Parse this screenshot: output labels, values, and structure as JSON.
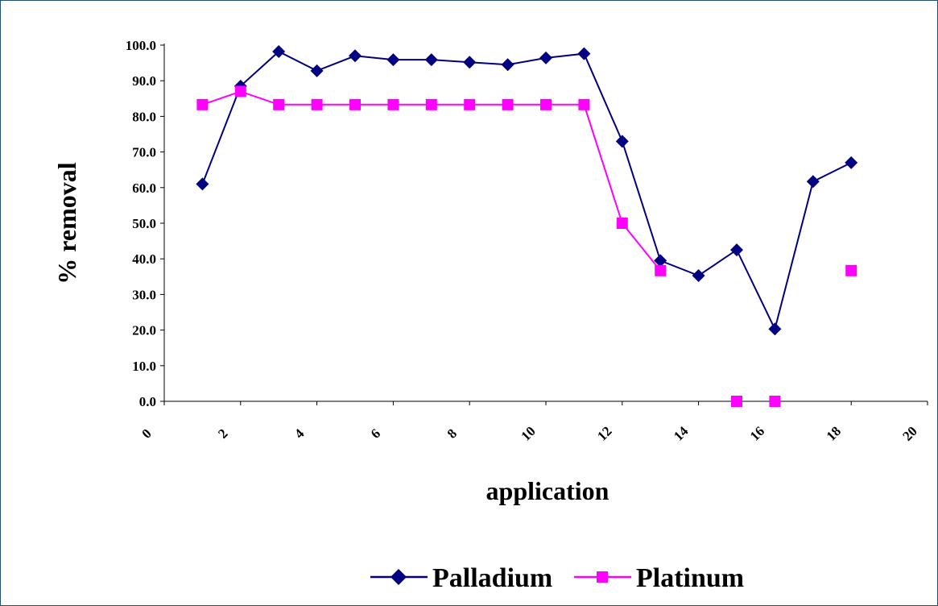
{
  "chart_data": {
    "type": "line",
    "xlabel": "application",
    "ylabel": "% removal",
    "xlim": [
      0,
      20
    ],
    "ylim": [
      0,
      100
    ],
    "x_ticks": [
      "0",
      "2",
      "4",
      "6",
      "8",
      "10",
      "12",
      "14",
      "16",
      "18",
      "20"
    ],
    "y_ticks": [
      "0.0",
      "10.0",
      "20.0",
      "30.0",
      "40.0",
      "50.0",
      "60.0",
      "70.0",
      "80.0",
      "90.0",
      "100.0"
    ],
    "grid": false,
    "legend_position": "bottom",
    "series": [
      {
        "name": "Palladium",
        "color": "#000080",
        "marker": "diamond",
        "connected": true,
        "points": [
          [
            1,
            61.0
          ],
          [
            2,
            88.5
          ],
          [
            3,
            98.2
          ],
          [
            4,
            92.8
          ],
          [
            5,
            97.0
          ],
          [
            6,
            95.9
          ],
          [
            7,
            95.9
          ],
          [
            8,
            95.2
          ],
          [
            9,
            94.5
          ],
          [
            10,
            96.4
          ],
          [
            11,
            97.6
          ],
          [
            12,
            73.0
          ],
          [
            13,
            39.5
          ],
          [
            14,
            35.3
          ],
          [
            15,
            42.5
          ],
          [
            16,
            20.3
          ],
          [
            17,
            61.7
          ],
          [
            18,
            67.0
          ]
        ]
      },
      {
        "name": "Platinum",
        "color": "#ff00ff",
        "marker": "square",
        "connected": true,
        "points": [
          [
            1,
            83.3
          ],
          [
            2,
            87.0
          ],
          [
            3,
            83.3
          ],
          [
            4,
            83.3
          ],
          [
            5,
            83.3
          ],
          [
            6,
            83.3
          ],
          [
            7,
            83.3
          ],
          [
            8,
            83.3
          ],
          [
            9,
            83.3
          ],
          [
            10,
            83.3
          ],
          [
            11,
            83.3
          ],
          [
            12,
            50.0
          ],
          [
            13,
            36.7
          ],
          [
            15,
            0.0
          ],
          [
            16,
            0.0
          ],
          [
            18,
            36.7
          ]
        ],
        "connected_upto_x": 13
      }
    ]
  }
}
